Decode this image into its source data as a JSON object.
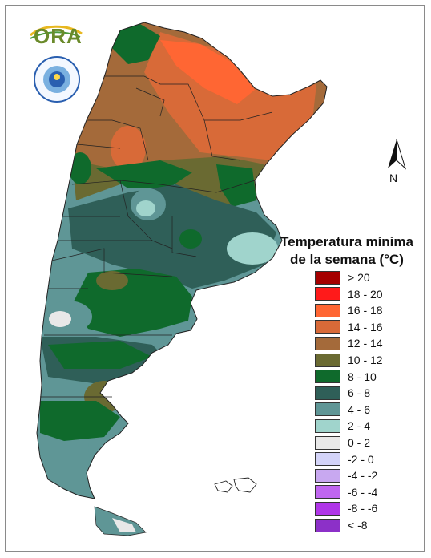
{
  "map": {
    "logo_text": "ORA",
    "north_label": "N",
    "legend_title_line1": "Temperatura mínima",
    "legend_title_line2": "de la semana (°C)",
    "legend": [
      {
        "label": "> 20",
        "color": "#a50000"
      },
      {
        "label": "18 - 20",
        "color": "#ff1a1a"
      },
      {
        "label": "16 - 18",
        "color": "#ff6633"
      },
      {
        "label": "14 - 16",
        "color": "#d86a38"
      },
      {
        "label": "12 - 14",
        "color": "#a46a3a"
      },
      {
        "label": "10 - 12",
        "color": "#6a6a32"
      },
      {
        "label": "8 - 10",
        "color": "#0f6a2c"
      },
      {
        "label": "6 - 8",
        "color": "#2f5f58"
      },
      {
        "label": "4 - 6",
        "color": "#5f9696"
      },
      {
        "label": "2 - 4",
        "color": "#a0d4cc"
      },
      {
        "label": "0 - 2",
        "color": "#e8e8e8"
      },
      {
        "label": "-2 - 0",
        "color": "#d4d4f8"
      },
      {
        "label": "-4 - -2",
        "color": "#c8a8f0"
      },
      {
        "label": "-6 - -4",
        "color": "#c066f0"
      },
      {
        "label": "-8 - -6",
        "color": "#b036e8"
      },
      {
        "label": "< -8",
        "color": "#8c30c8"
      }
    ]
  }
}
